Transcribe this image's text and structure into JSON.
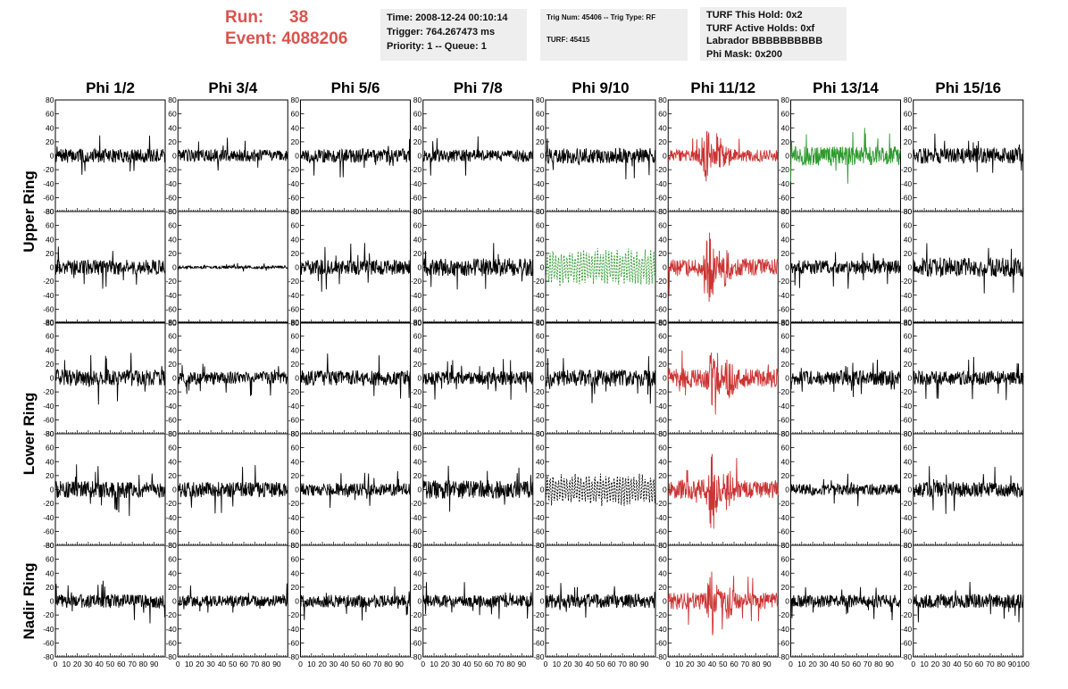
{
  "header": {
    "run_label": "Run:",
    "run_value": "38",
    "event_label": "Event:",
    "event_value": "4088206",
    "time_line": "Time: 2008-12-24 00:10:14",
    "trigger_line": "Trigger: 764.267473 ms",
    "priority_line": "Priority: 1 -- Queue: 1",
    "trig_num_line": "Trig Num: 45406 -- Trig Type: RF",
    "turf_line": "TURF: 45415",
    "turf_hold_line": "TURF This Hold: 0x2",
    "turf_active_line": "TURF Active Holds: 0xf",
    "labrador_line": "Labrador BBBBBBBBBB",
    "phi_mask_line": "Phi Mask: 0x200"
  },
  "chart_data": {
    "type": "line",
    "layout": "grid of waveform panels, 5 rows x 8 columns",
    "columns": [
      "Phi 1/2",
      "Phi 3/4",
      "Phi 5/6",
      "Phi 7/8",
      "Phi 9/10",
      "Phi 11/12",
      "Phi 13/14",
      "Phi 15/16"
    ],
    "row_groups": [
      {
        "label": "Upper Ring",
        "rows": [
          0,
          1
        ]
      },
      {
        "label": "Lower Ring",
        "rows": [
          2,
          3
        ]
      },
      {
        "label": "Nadir Ring",
        "rows": [
          4
        ]
      }
    ],
    "xlim": [
      0,
      100
    ],
    "ylim": [
      -80,
      80
    ],
    "x_tick_labels": [
      "0",
      "10",
      "20",
      "30",
      "40",
      "50",
      "60",
      "70",
      "80",
      "90"
    ],
    "x_tick_last_label": "100",
    "y_tick_labels": [
      "80",
      "60",
      "40",
      "20",
      "0",
      "-20",
      "-40",
      "-60",
      "-80"
    ],
    "y_tick_values": [
      80,
      60,
      40,
      20,
      0,
      -20,
      -40,
      -60,
      -80
    ],
    "colors": {
      "normal": "#000000",
      "triggered_phi": "#cc3333",
      "green": "#2e9a2e",
      "red_header": "#d9534f"
    },
    "panels": [
      {
        "row": 0,
        "col": 0,
        "color": "#000000",
        "style": "solid",
        "amp": 10,
        "peak": 45,
        "burst": null
      },
      {
        "row": 0,
        "col": 1,
        "color": "#000000",
        "style": "solid",
        "amp": 9,
        "peak": 35,
        "burst": null
      },
      {
        "row": 0,
        "col": 2,
        "color": "#000000",
        "style": "solid",
        "amp": 10,
        "peak": 40,
        "burst": null
      },
      {
        "row": 0,
        "col": 3,
        "color": "#000000",
        "style": "solid",
        "amp": 9,
        "peak": 35,
        "burst": null
      },
      {
        "row": 0,
        "col": 4,
        "color": "#000000",
        "style": "solid",
        "amp": 11,
        "peak": 55,
        "burst": null
      },
      {
        "row": 0,
        "col": 5,
        "color": "#cc3333",
        "style": "solid",
        "amp": 9,
        "peak": 75,
        "burst": 35
      },
      {
        "row": 0,
        "col": 6,
        "color": "#2e9a2e",
        "style": "solid",
        "amp": 14,
        "peak": 40,
        "burst": null
      },
      {
        "row": 0,
        "col": 7,
        "color": "#000000",
        "style": "solid",
        "amp": 11,
        "peak": 55,
        "burst": null
      },
      {
        "row": 1,
        "col": 0,
        "color": "#000000",
        "style": "solid",
        "amp": 11,
        "peak": 55,
        "burst": null
      },
      {
        "row": 1,
        "col": 1,
        "color": "#000000",
        "style": "solid",
        "amp": 2,
        "peak": 6,
        "burst": null
      },
      {
        "row": 1,
        "col": 2,
        "color": "#000000",
        "style": "solid",
        "amp": 11,
        "peak": 45,
        "burst": null
      },
      {
        "row": 1,
        "col": 3,
        "color": "#000000",
        "style": "solid",
        "amp": 13,
        "peak": 50,
        "burst": null
      },
      {
        "row": 1,
        "col": 4,
        "color": "#2e9a2e",
        "style": "dashed",
        "amp": 20,
        "peak": 50,
        "burst": null
      },
      {
        "row": 1,
        "col": 5,
        "color": "#cc3333",
        "style": "solid",
        "amp": 13,
        "peak": 50,
        "burst": 38
      },
      {
        "row": 1,
        "col": 6,
        "color": "#000000",
        "style": "solid",
        "amp": 10,
        "peak": 40,
        "burst": null
      },
      {
        "row": 1,
        "col": 7,
        "color": "#000000",
        "style": "solid",
        "amp": 14,
        "peak": 65,
        "burst": null
      },
      {
        "row": 2,
        "col": 0,
        "color": "#000000",
        "style": "solid",
        "amp": 12,
        "peak": 55,
        "burst": null
      },
      {
        "row": 2,
        "col": 1,
        "color": "#000000",
        "style": "solid",
        "amp": 9,
        "peak": 35,
        "burst": null
      },
      {
        "row": 2,
        "col": 2,
        "color": "#000000",
        "style": "solid",
        "amp": 11,
        "peak": 45,
        "burst": null
      },
      {
        "row": 2,
        "col": 3,
        "color": "#000000",
        "style": "solid",
        "amp": 10,
        "peak": 40,
        "burst": null
      },
      {
        "row": 2,
        "col": 4,
        "color": "#000000",
        "style": "solid",
        "amp": 12,
        "peak": 45,
        "burst": null
      },
      {
        "row": 2,
        "col": 5,
        "color": "#cc3333",
        "style": "solid",
        "amp": 14,
        "peak": 60,
        "burst": 42
      },
      {
        "row": 2,
        "col": 6,
        "color": "#000000",
        "style": "solid",
        "amp": 11,
        "peak": 40,
        "burst": null
      },
      {
        "row": 2,
        "col": 7,
        "color": "#000000",
        "style": "solid",
        "amp": 10,
        "peak": 40,
        "burst": null
      },
      {
        "row": 3,
        "col": 0,
        "color": "#000000",
        "style": "solid",
        "amp": 12,
        "peak": 55,
        "burst": null
      },
      {
        "row": 3,
        "col": 1,
        "color": "#000000",
        "style": "solid",
        "amp": 11,
        "peak": 40,
        "burst": null
      },
      {
        "row": 3,
        "col": 2,
        "color": "#000000",
        "style": "solid",
        "amp": 9,
        "peak": 35,
        "burst": null
      },
      {
        "row": 3,
        "col": 3,
        "color": "#000000",
        "style": "solid",
        "amp": 13,
        "peak": 50,
        "burst": null
      },
      {
        "row": 3,
        "col": 4,
        "color": "#000000",
        "style": "dashed",
        "amp": 17,
        "peak": 45,
        "burst": null
      },
      {
        "row": 3,
        "col": 5,
        "color": "#cc3333",
        "style": "solid",
        "amp": 14,
        "peak": 70,
        "burst": 40
      },
      {
        "row": 3,
        "col": 6,
        "color": "#000000",
        "style": "solid",
        "amp": 8,
        "peak": 30,
        "burst": null
      },
      {
        "row": 3,
        "col": 7,
        "color": "#000000",
        "style": "solid",
        "amp": 11,
        "peak": 40,
        "burst": null
      },
      {
        "row": 4,
        "col": 0,
        "color": "#000000",
        "style": "solid",
        "amp": 10,
        "peak": 40,
        "burst": null
      },
      {
        "row": 4,
        "col": 1,
        "color": "#000000",
        "style": "solid",
        "amp": 8,
        "peak": 30,
        "burst": null
      },
      {
        "row": 4,
        "col": 2,
        "color": "#000000",
        "style": "solid",
        "amp": 9,
        "peak": 30,
        "burst": null
      },
      {
        "row": 4,
        "col": 3,
        "color": "#000000",
        "style": "solid",
        "amp": 9,
        "peak": 30,
        "burst": null
      },
      {
        "row": 4,
        "col": 4,
        "color": "#000000",
        "style": "solid",
        "amp": 10,
        "peak": 35,
        "burst": null
      },
      {
        "row": 4,
        "col": 5,
        "color": "#cc3333",
        "style": "solid",
        "amp": 12,
        "peak": 60,
        "burst": 40
      },
      {
        "row": 4,
        "col": 6,
        "color": "#000000",
        "style": "solid",
        "amp": 9,
        "peak": 35,
        "burst": null
      },
      {
        "row": 4,
        "col": 7,
        "color": "#000000",
        "style": "solid",
        "amp": 10,
        "peak": 35,
        "burst": null
      }
    ]
  }
}
